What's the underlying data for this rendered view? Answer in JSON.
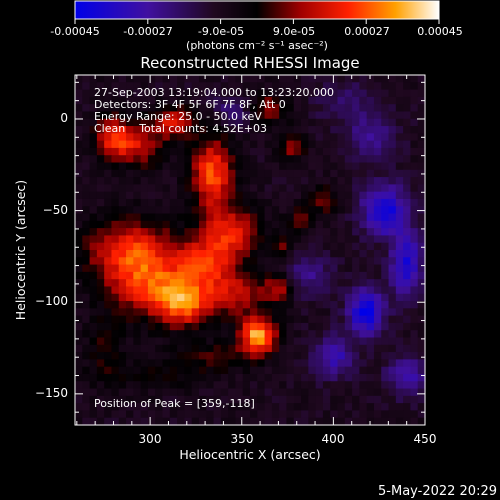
{
  "colorbar": {
    "tick_labels": [
      "-0.00045",
      "-0.00027",
      "-9.0e-05",
      "9.0e-05",
      "0.00027",
      "0.00045"
    ],
    "tick_values": [
      -0.00045,
      -0.00027,
      -9e-05,
      9e-05,
      0.00027,
      0.00045
    ],
    "range": [
      -0.00045,
      0.00045
    ],
    "units_label": "(photons cm⁻² s⁻¹ asec⁻²)",
    "colors": [
      "#0000e8",
      "#000000",
      "#ff0000",
      "#ffa000",
      "#ffffff"
    ]
  },
  "annotations": {
    "line1": "27-Sep-2003 13:19:04.000 to 13:23:20.000",
    "line2": "Detectors: 3F 4F 5F 6F 7F 8F, Att 0",
    "line3": "Energy Range: 25.0 - 50.0 keV",
    "line4": "Clean    Total counts: 4.52E+03",
    "peak": "Position of Peak = [359,-118]"
  },
  "footer": {
    "date": "5-May-2022 20:29"
  },
  "chart_data": {
    "type": "heatmap",
    "title": "Reconstructed RHESSI Image",
    "xlabel": "Heliocentric X (arcsec)",
    "ylabel": "Heliocentric Y (arcsec)",
    "xlim": [
      259,
      450
    ],
    "ylim": [
      -167,
      24
    ],
    "x_ticks": [
      300,
      350,
      400,
      450
    ],
    "y_ticks": [
      0,
      -50,
      -100,
      -150
    ],
    "peak_position": [
      359,
      -118
    ],
    "blobs": [
      {
        "x": 359,
        "y": -118,
        "sx": 7,
        "sy": 7,
        "a": 0.00045
      },
      {
        "x": 318,
        "y": -100,
        "sx": 10,
        "sy": 9,
        "a": 0.00033
      },
      {
        "x": 290,
        "y": -72,
        "sx": 18,
        "sy": 12,
        "a": 0.0003
      },
      {
        "x": 300,
        "y": -92,
        "sx": 16,
        "sy": 12,
        "a": 0.00026
      },
      {
        "x": 280,
        "y": -10,
        "sx": 7,
        "sy": 8,
        "a": 0.0003
      },
      {
        "x": 295,
        "y": -15,
        "sx": 9,
        "sy": 8,
        "a": 0.00022
      },
      {
        "x": 313,
        "y": -2,
        "sx": 8,
        "sy": 6,
        "a": 0.00026
      },
      {
        "x": 334,
        "y": -30,
        "sx": 8,
        "sy": 14,
        "a": 0.00035
      },
      {
        "x": 344,
        "y": -62,
        "sx": 11,
        "sy": 10,
        "a": 0.00028
      },
      {
        "x": 330,
        "y": -78,
        "sx": 10,
        "sy": 8,
        "a": 0.00026
      },
      {
        "x": 345,
        "y": -95,
        "sx": 12,
        "sy": 9,
        "a": 0.00024
      },
      {
        "x": 370,
        "y": -92,
        "sx": 6,
        "sy": 6,
        "a": 0.00022
      },
      {
        "x": 365,
        "y": 5,
        "sx": 7,
        "sy": 6,
        "a": 0.0002
      },
      {
        "x": 378,
        "y": -15,
        "sx": 5,
        "sy": 5,
        "a": 0.0002
      },
      {
        "x": 395,
        "y": -44,
        "sx": 5,
        "sy": 5,
        "a": 0.00018
      },
      {
        "x": 382,
        "y": -55,
        "sx": 5,
        "sy": 5,
        "a": 0.00016
      },
      {
        "x": 372,
        "y": -70,
        "sx": 5,
        "sy": 4,
        "a": 0.00014
      },
      {
        "x": 335,
        "y": -130,
        "sx": 16,
        "sy": 6,
        "a": 0.00012
      },
      {
        "x": 300,
        "y": -140,
        "sx": 20,
        "sy": 6,
        "a": 8e-05
      },
      {
        "x": 275,
        "y": -125,
        "sx": 8,
        "sy": 12,
        "a": 0.0001
      },
      {
        "x": 418,
        "y": -105,
        "sx": 7,
        "sy": 9,
        "a": -0.00035
      },
      {
        "x": 428,
        "y": -50,
        "sx": 9,
        "sy": 10,
        "a": -0.00032
      },
      {
        "x": 440,
        "y": -80,
        "sx": 6,
        "sy": 12,
        "a": -0.0003
      },
      {
        "x": 400,
        "y": -130,
        "sx": 8,
        "sy": 8,
        "a": -0.00022
      },
      {
        "x": 385,
        "y": -85,
        "sx": 10,
        "sy": 8,
        "a": -0.00015
      },
      {
        "x": 440,
        "y": -140,
        "sx": 8,
        "sy": 8,
        "a": -0.0002
      },
      {
        "x": 345,
        "y": 5,
        "sx": 8,
        "sy": 6,
        "a": -0.00012
      },
      {
        "x": 405,
        "y": 10,
        "sx": 12,
        "sy": 8,
        "a": -0.0001
      },
      {
        "x": 420,
        "y": -10,
        "sx": 10,
        "sy": 10,
        "a": -0.00015
      }
    ],
    "grid": false
  }
}
